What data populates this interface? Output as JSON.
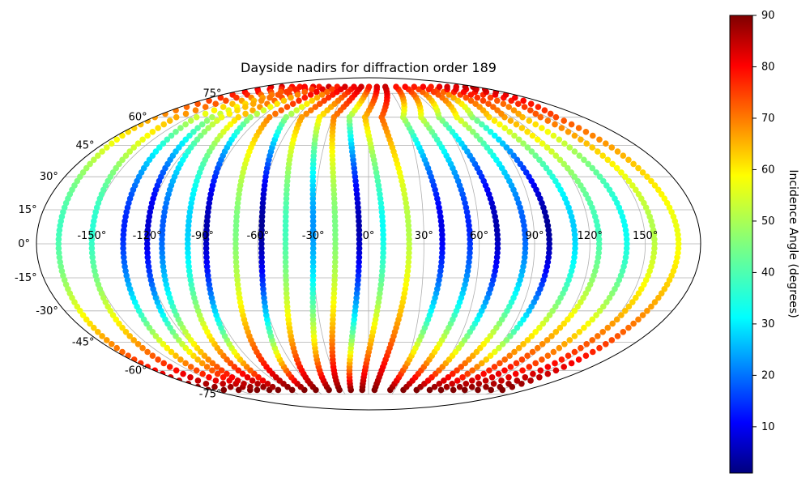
{
  "chart_data": {
    "type": "scatter",
    "projection": "mollweide",
    "title": "Dayside nadirs for diffraction order 189",
    "x_ticks": [
      "-150°",
      "-120°",
      "-90°",
      "-60°",
      "-30°",
      "0°",
      "30°",
      "60°",
      "90°",
      "120°",
      "150°"
    ],
    "y_ticks": [
      "-75°",
      "-60°",
      "-45°",
      "-30°",
      "-15°",
      "0°",
      "15°",
      "30°",
      "45°",
      "60°",
      "75°"
    ],
    "grid": true,
    "colorbar": {
      "label": "Incidence Angle (degrees)",
      "colormap": "jet",
      "range": [
        1,
        90
      ],
      "ticks": [
        "10",
        "20",
        "30",
        "40",
        "50",
        "60",
        "70",
        "80",
        "90"
      ]
    },
    "tracks_note_values_lon_deg": [
      -168,
      -150,
      -133,
      -120,
      -112,
      -98,
      -88,
      -72,
      -58,
      -45,
      -30,
      -18,
      -5,
      8,
      22,
      40,
      55,
      70,
      85,
      98,
      112,
      125,
      140,
      155,
      168
    ],
    "track_min_incidence": [
      40,
      38,
      15,
      8,
      20,
      30,
      5,
      45,
      3,
      40,
      25,
      45,
      5,
      35,
      50,
      10,
      15,
      5,
      20,
      3,
      30,
      40,
      35,
      50,
      55
    ]
  }
}
